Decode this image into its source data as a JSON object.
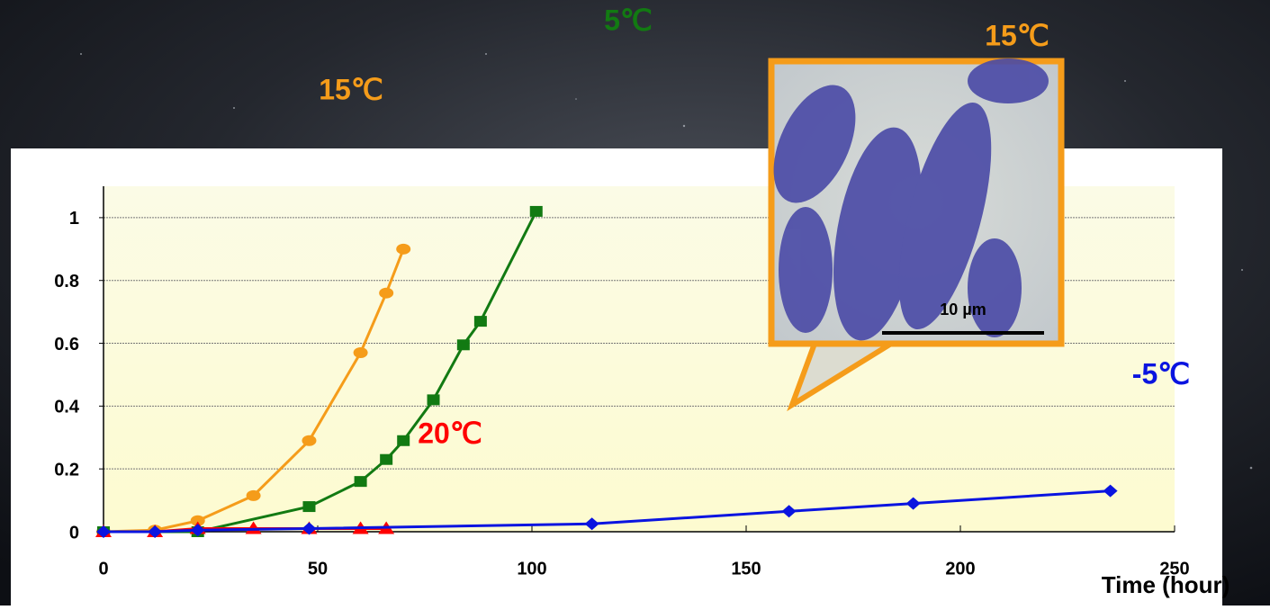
{
  "chart_data": {
    "type": "line",
    "xlabel": "Time (hour)",
    "xlim": [
      0,
      250
    ],
    "xticks": [
      0,
      50,
      100,
      150,
      200,
      250
    ],
    "ylim": [
      0,
      1.1
    ],
    "yticks": [
      0,
      0.2,
      0.4,
      0.6,
      0.8,
      1
    ],
    "grid": true,
    "series": [
      {
        "color": "#f59c1a",
        "marker": "circle",
        "x": [
          0,
          12,
          22,
          35,
          48,
          60,
          66,
          70
        ],
        "values": [
          0,
          0.005,
          0.035,
          0.115,
          0.29,
          0.57,
          0.76,
          0.9
        ]
      },
      {
        "color": "#127a12",
        "marker": "square",
        "x": [
          0,
          22,
          48,
          60,
          66,
          70,
          77,
          84,
          88,
          101
        ],
        "values": [
          0,
          0,
          0.08,
          0.16,
          0.23,
          0.29,
          0.42,
          0.595,
          0.67,
          1.02
        ]
      },
      {
        "color": "#ff0000",
        "marker": "triangle",
        "x": [
          0,
          12,
          22,
          35,
          48,
          60,
          66
        ],
        "values": [
          0,
          0,
          0.01,
          0.01,
          0.01,
          0.01,
          0.01
        ]
      },
      {
        "color": "#0a14e0",
        "marker": "diamond",
        "x": [
          0,
          12,
          22,
          48,
          114,
          160,
          189,
          235
        ],
        "values": [
          0,
          0,
          0.005,
          0.01,
          0.025,
          0.065,
          0.09,
          0.13
        ]
      }
    ],
    "annotations": [
      {
        "text": "15℃",
        "color": "#f59c1a"
      },
      {
        "text": "5℃",
        "color": "#127a12"
      },
      {
        "text": "15℃",
        "color": "#f59c1a"
      },
      {
        "text": "20℃",
        "color": "#ff0000"
      },
      {
        "text": "-5℃",
        "color": "#0a14e0"
      }
    ],
    "inset": {
      "scale_label": "10 µm"
    }
  }
}
